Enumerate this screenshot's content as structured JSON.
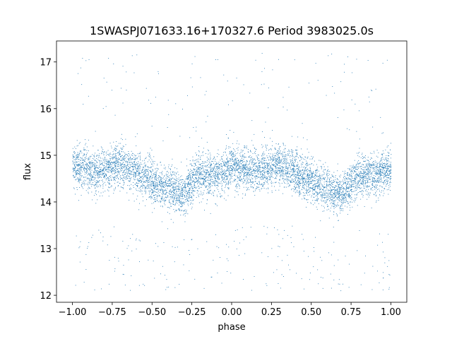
{
  "chart_data": {
    "type": "scatter",
    "title": "1SWASPJ071633.16+170327.6 Period 3983025.0s",
    "xlabel": "phase",
    "ylabel": "flux",
    "xlim": [
      -1.1,
      1.1
    ],
    "ylim": [
      11.85,
      17.45
    ],
    "xticks": [
      -1.0,
      -0.75,
      -0.5,
      -0.25,
      0.0,
      0.25,
      0.5,
      0.75,
      1.0
    ],
    "xtick_labels": [
      "−1.00",
      "−0.75",
      "−0.50",
      "−0.25",
      "0.00",
      "0.25",
      "0.50",
      "0.75",
      "1.00"
    ],
    "yticks": [
      12,
      13,
      14,
      15,
      16,
      17
    ],
    "ytick_labels": [
      "12",
      "13",
      "14",
      "15",
      "16",
      "17"
    ],
    "grid": false,
    "marker_color": "#1f77b4",
    "series": [
      {
        "phase_values": [
          -1.0,
          -0.95,
          -0.9,
          -0.85,
          -0.8,
          -0.75,
          -0.7,
          -0.65,
          -0.6,
          -0.55,
          -0.5,
          -0.45,
          -0.4,
          -0.35,
          -0.3,
          -0.25,
          -0.2,
          -0.15,
          -0.1,
          -0.05,
          0.0,
          0.05,
          0.1,
          0.15,
          0.2,
          0.25,
          0.3,
          0.35,
          0.4,
          0.45,
          0.5,
          0.55,
          0.6,
          0.65,
          0.7,
          0.75,
          0.8,
          0.85,
          0.9,
          0.95,
          1.0
        ],
        "median_flux": [
          14.75,
          14.75,
          14.7,
          14.6,
          14.7,
          14.75,
          14.8,
          14.7,
          14.65,
          14.55,
          14.45,
          14.35,
          14.3,
          14.2,
          14.15,
          14.45,
          14.6,
          14.55,
          14.55,
          14.65,
          14.75,
          14.75,
          14.7,
          14.6,
          14.7,
          14.75,
          14.8,
          14.7,
          14.65,
          14.55,
          14.45,
          14.35,
          14.3,
          14.2,
          14.15,
          14.45,
          14.6,
          14.55,
          14.55,
          14.65,
          14.75
        ],
        "scatter_width": 0.32
      }
    ]
  }
}
